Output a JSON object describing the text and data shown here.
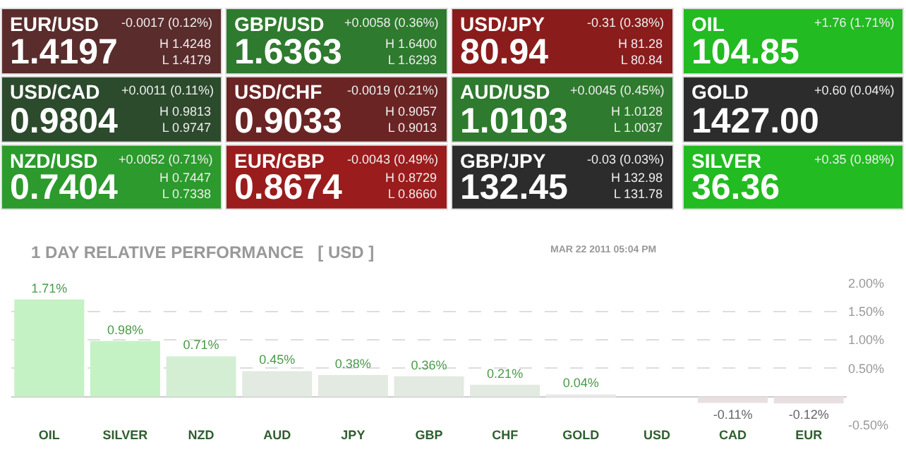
{
  "chart_data": [
    {
      "type": "other",
      "categories": [
        "EUR/USD",
        "USD/CAD",
        "NZD/USD",
        "GBP/USD",
        "USD/CHF",
        "EUR/GBP",
        "USD/JPY",
        "AUD/USD",
        "GBP/JPY",
        "OIL",
        "GOLD",
        "SILVER"
      ],
      "values": [
        1.4197,
        0.9804,
        0.7404,
        1.6363,
        0.9033,
        0.8674,
        80.94,
        1.0103,
        132.45,
        104.85,
        1427.0,
        36.36
      ],
      "value_labels": [
        "1.4197",
        "0.9804",
        "0.7404",
        "1.6363",
        "0.9033",
        "0.8674",
        "80.94",
        "1.0103",
        "132.45",
        "104.85",
        "1427.00",
        "36.36"
      ],
      "colors": [
        "#5a2c2c",
        "#2c4a2c",
        "#2c9a2c",
        "#2e7a2e",
        "#6a2424",
        "#9a1c1c",
        "#8a1c1c",
        "#2e7a2e",
        "#2c2c2c",
        "#22bb22",
        "#2c2c2c",
        "#22bb22"
      ],
      "annotations": [
        "-0.0017 (0.12%)",
        "+0.0011 (0.11%)",
        "+0.0052 (0.71%)",
        "+0.0058 (0.36%)",
        "-0.0019 (0.21%)",
        "-0.0043 (0.49%)",
        "-0.31 (0.38%)",
        "+0.0045 (0.45%)",
        "-0.03 (0.03%)",
        "+1.76 (1.71%)",
        "+0.60 (0.04%)",
        "+0.35 (0.98%)",
        "H 1.4248\nL 1.4179",
        "H 0.9813\nL 0.9747",
        "H 0.7447\nL 0.7338",
        "H 1.6400\nL 1.6293",
        "H 0.9057\nL 0.9013",
        "H 0.8729\nL 0.8660",
        "H 81.28\nL 80.84",
        "H 1.0128\nL 1.0037",
        "H 132.98\nL 131.78"
      ]
    },
    {
      "type": "bar",
      "title": "1 DAY RELATIVE PERFORMANCE   [ USD ]",
      "annotations": [
        "MAR 22 2011 05:04 PM"
      ],
      "categories": [
        "OIL",
        "SILVER",
        "NZD",
        "AUD",
        "JPY",
        "GBP",
        "CHF",
        "GOLD",
        "USD",
        "CAD",
        "EUR"
      ],
      "values": [
        1.71,
        0.98,
        0.71,
        0.45,
        0.38,
        0.36,
        0.21,
        0.04,
        0,
        -0.11,
        -0.12
      ],
      "value_labels": [
        "1.71%",
        "0.98%",
        "0.71%",
        "0.45%",
        "0.38%",
        "0.36%",
        "0.21%",
        "0.04%",
        null,
        "-0.11%",
        "-0.12%"
      ],
      "colors": [
        "#c4f2c4",
        "#c4f2c4",
        "#d4eed4",
        "#e2eae2",
        "#e2eae2",
        "#e2eae2",
        "#e2eae2",
        "#e8e8e8",
        "#e8e8e8",
        "#e8e0e0",
        "#e8e0e0"
      ],
      "ylim": [
        -0.5,
        2
      ],
      "yticks": [
        {
          "value": 2,
          "label": "2.00%"
        },
        {
          "value": 1.5,
          "label": "1.50%"
        },
        {
          "value": 1,
          "label": "1.00%"
        },
        {
          "value": 0.5,
          "label": "0.50%"
        },
        {
          "value": -0.5,
          "label": "-0.50%"
        }
      ],
      "grid": "y"
    }
  ]
}
